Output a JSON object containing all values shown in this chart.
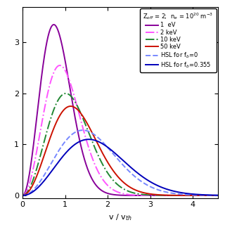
{
  "title": "",
  "xlabel": "v / v$_{th}$",
  "ylabel": "",
  "xlim": [
    0,
    4.6
  ],
  "ylim": [
    -0.05,
    3.7
  ],
  "yticks": [
    0,
    1,
    2,
    3
  ],
  "ytick_labels": [
    "0",
    "1",
    "2",
    "3"
  ],
  "xticks": [
    0,
    1,
    2,
    3,
    4
  ],
  "legend_title": "Z$_{off}$ = 2;  n$_e$ = 10$^{20}$ m$^{-3}$",
  "curves": [
    {
      "label": "1  eV",
      "color": "#880099",
      "linestyle": "solid",
      "peak": 3.35,
      "peak_v": 1.05,
      "sigma": 0.52
    },
    {
      "label": "2 keV",
      "color": "#ff55ff",
      "linestyle": "dashdot",
      "peak": 2.55,
      "peak_v": 1.2,
      "sigma": 0.62
    },
    {
      "label": "10 keV",
      "color": "#228833",
      "linestyle": "dashdot",
      "peak": 2.0,
      "peak_v": 1.3,
      "sigma": 0.72
    },
    {
      "label": "50 keV",
      "color": "#cc1100",
      "linestyle": "solid",
      "peak": 1.75,
      "peak_v": 1.35,
      "sigma": 0.8
    },
    {
      "label": "HSL for f$_b$=0",
      "color": "#7788ff",
      "linestyle": "dashed",
      "peak": 1.28,
      "peak_v": 1.5,
      "sigma": 1.0
    },
    {
      "label": "HSL for f$_b$=0.355",
      "color": "#0000bb",
      "linestyle": "solid",
      "peak": 1.1,
      "peak_v": 1.6,
      "sigma": 1.1
    }
  ],
  "background_color": "#ffffff",
  "legend_fontsize": 6.0,
  "legend_title_fontsize": 6.0,
  "axis_fontsize": 8,
  "tick_fontsize": 8,
  "linewidth": 1.4
}
